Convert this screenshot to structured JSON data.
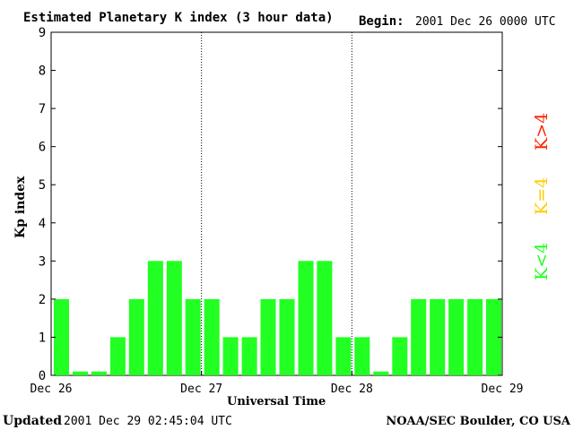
{
  "header": {
    "title": "Estimated Planetary K index (3 hour data)",
    "begin_label": "Begin:",
    "begin_value": "2001 Dec 26 0000 UTC"
  },
  "footer": {
    "updated_label": "Updated",
    "updated_value": "2001 Dec 29 02:45:04 UTC",
    "source": "NOAA/SEC Boulder, CO USA"
  },
  "legend": {
    "high": "K>4",
    "equal": "K=4",
    "low": "K<4"
  },
  "colors": {
    "low": "#22ff22",
    "equal": "#ffcc00",
    "high": "#ff2200"
  },
  "chart_data": {
    "type": "bar",
    "title": "Estimated Planetary K index (3 hour data)",
    "xlabel": "Universal Time",
    "ylabel": "Kp index",
    "ylim": [
      0,
      9
    ],
    "yticks": [
      "0",
      "1",
      "2",
      "3",
      "4",
      "5",
      "6",
      "7",
      "8",
      "9"
    ],
    "xticks": [
      "Dec 26",
      "Dec 27",
      "Dec 28",
      "Dec 29"
    ],
    "categories": [
      "Dec 26 00",
      "Dec 26 03",
      "Dec 26 06",
      "Dec 26 09",
      "Dec 26 12",
      "Dec 26 15",
      "Dec 26 18",
      "Dec 26 21",
      "Dec 27 00",
      "Dec 27 03",
      "Dec 27 06",
      "Dec 27 09",
      "Dec 27 12",
      "Dec 27 15",
      "Dec 27 18",
      "Dec 27 21",
      "Dec 28 00",
      "Dec 28 03",
      "Dec 28 06",
      "Dec 28 09",
      "Dec 28 12",
      "Dec 28 15",
      "Dec 28 18",
      "Dec 28 21"
    ],
    "values": [
      2,
      0,
      0,
      1,
      2,
      3,
      3,
      2,
      2,
      1,
      1,
      2,
      2,
      3,
      3,
      1,
      1,
      0,
      1,
      2,
      2,
      2,
      2,
      2
    ],
    "grid": false
  }
}
